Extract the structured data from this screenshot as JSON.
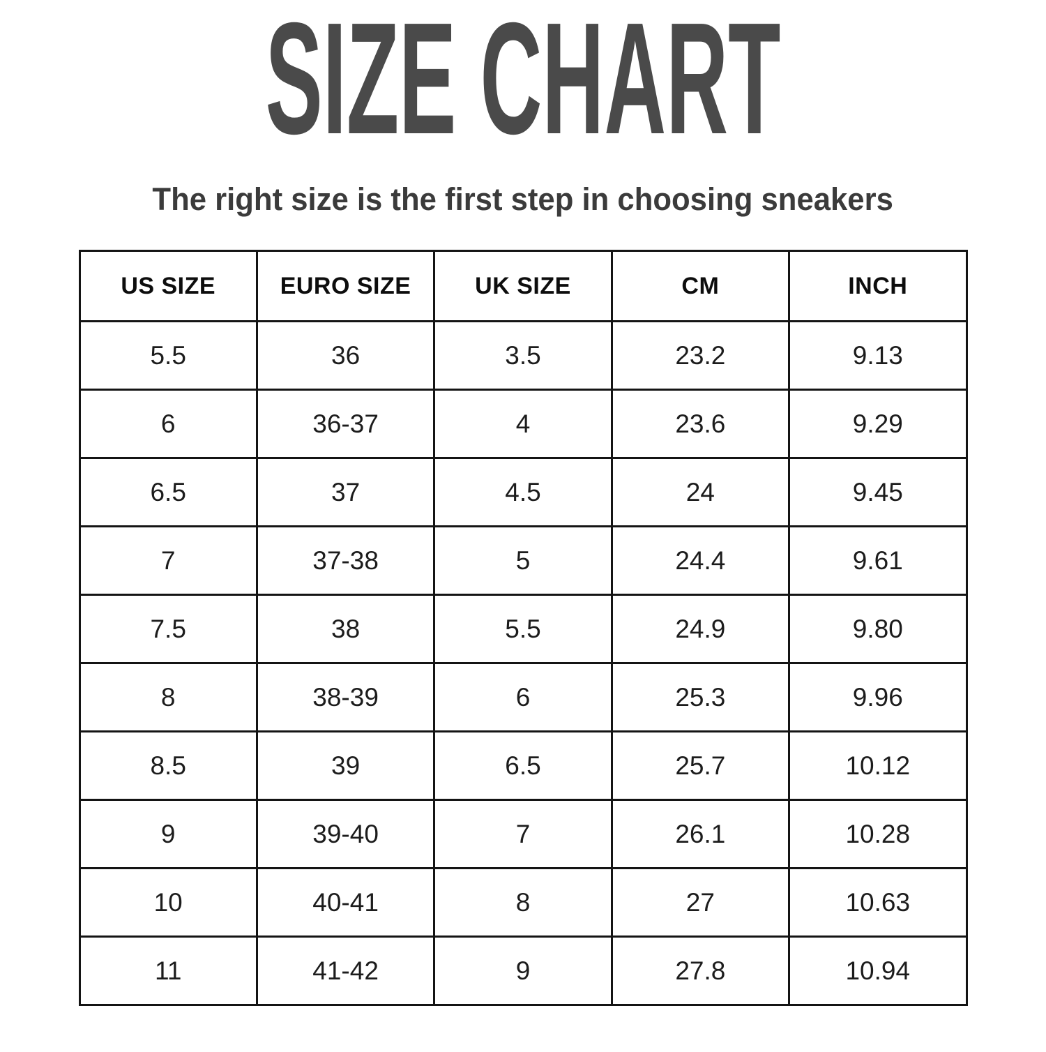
{
  "page": {
    "title": "SIZE CHART",
    "subtitle": "The right size is the first step in choosing sneakers"
  },
  "colors": {
    "background": "#ffffff",
    "title_text": "#4a4a4a",
    "subtitle_text": "#3b3b3b",
    "table_border": "#141414",
    "header_text": "#0d0d0d",
    "cell_text": "#1c1c1c"
  },
  "chart_data": {
    "type": "table",
    "title": "SIZE CHART",
    "subtitle": "The right size is the first step in choosing sneakers",
    "columns": [
      "US SIZE",
      "EURO SIZE",
      "UK SIZE",
      "CM",
      "INCH"
    ],
    "rows": [
      [
        "5.5",
        "36",
        "3.5",
        "23.2",
        "9.13"
      ],
      [
        "6",
        "36-37",
        "4",
        "23.6",
        "9.29"
      ],
      [
        "6.5",
        "37",
        "4.5",
        "24",
        "9.45"
      ],
      [
        "7",
        "37-38",
        "5",
        "24.4",
        "9.61"
      ],
      [
        "7.5",
        "38",
        "5.5",
        "24.9",
        "9.80"
      ],
      [
        "8",
        "38-39",
        "6",
        "25.3",
        "9.96"
      ],
      [
        "8.5",
        "39",
        "6.5",
        "25.7",
        "10.12"
      ],
      [
        "9",
        "39-40",
        "7",
        "26.1",
        "10.28"
      ],
      [
        "10",
        "40-41",
        "8",
        "27",
        "10.63"
      ],
      [
        "11",
        "41-42",
        "9",
        "27.8",
        "10.94"
      ]
    ]
  }
}
